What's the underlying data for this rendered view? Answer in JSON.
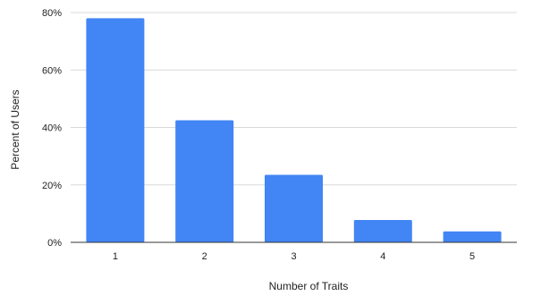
{
  "chart_data": {
    "type": "bar",
    "title": "",
    "xlabel": "Number of Traits",
    "ylabel": "Percent of Users",
    "categories": [
      "1",
      "2",
      "3",
      "4",
      "5"
    ],
    "values": [
      78,
      42.5,
      23.5,
      7.8,
      3.8
    ],
    "ylim": [
      0,
      80
    ],
    "yticks": [
      0,
      20,
      40,
      60,
      80
    ],
    "ytick_labels": [
      "0%",
      "20%",
      "40%",
      "60%",
      "80%"
    ],
    "grid": true,
    "legend": "none",
    "bar_color": "#4285f4",
    "grid_color": "#d9d9d9"
  }
}
